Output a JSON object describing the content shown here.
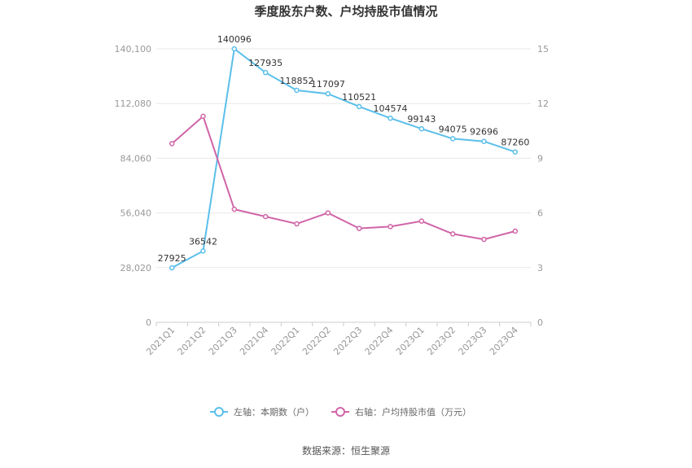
{
  "chart_data": {
    "type": "line",
    "title": "季度股东户数、户均持股市值情况",
    "categories": [
      "2021Q1",
      "2021Q2",
      "2021Q3",
      "2021Q4",
      "2022Q1",
      "2022Q2",
      "2022Q3",
      "2022Q4",
      "2023Q1",
      "2023Q2",
      "2023Q3",
      "2023Q4"
    ],
    "left_axis": {
      "min": 0,
      "max": 140100,
      "ticks": [
        "0",
        "28,020",
        "56,040",
        "84,060",
        "112,080",
        "140,100"
      ]
    },
    "right_axis": {
      "min": 0,
      "max": 15,
      "ticks": [
        "0",
        "3",
        "6",
        "9",
        "12",
        "15"
      ]
    },
    "series": [
      {
        "name": "左轴：本期数（户）",
        "axis": "left",
        "color": "#5bbfea",
        "values": [
          27925,
          36542,
          140096,
          127935,
          118852,
          117097,
          110521,
          104574,
          99143,
          94075,
          92696,
          87260
        ],
        "labels": [
          "27925",
          "36542",
          "140096",
          "127935",
          "118852",
          "117097",
          "110521",
          "104574",
          "99143",
          "94075",
          "92696",
          "87260"
        ]
      },
      {
        "name": "右轴：户均持股市值（万元）",
        "axis": "right",
        "color": "#d065a8",
        "values": [
          9.8,
          11.3,
          6.2,
          5.8,
          5.4,
          6.0,
          5.15,
          5.25,
          5.55,
          4.85,
          4.55,
          5.0
        ]
      }
    ],
    "grid": true,
    "legend_position": "bottom"
  },
  "source_text": "数据来源：恒生聚源"
}
